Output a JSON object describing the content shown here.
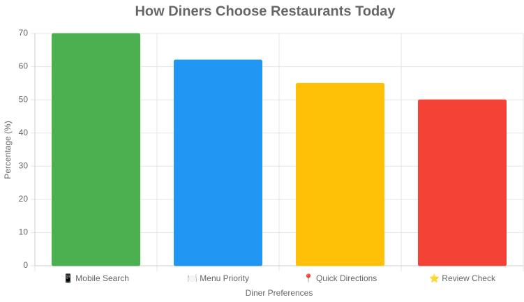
{
  "chart_data": {
    "type": "bar",
    "title": "How Diners Choose Restaurants Today",
    "categories": [
      "📱 Mobile Search",
      "🍽️ Menu Priority",
      "📍 Quick Directions",
      "⭐ Review Check"
    ],
    "series": [
      {
        "name": "Percentage",
        "colors": [
          "#4caf50",
          "#2196f3",
          "#ffc107",
          "#f44336"
        ],
        "values": [
          70,
          62,
          55,
          50
        ]
      }
    ],
    "x_label": "Diner Preferences",
    "y_label": "Percentage (%)",
    "ylim": [
      0,
      70
    ],
    "yticks": [
      0,
      10,
      20,
      30,
      40,
      50,
      60,
      70
    ],
    "grid": true
  }
}
